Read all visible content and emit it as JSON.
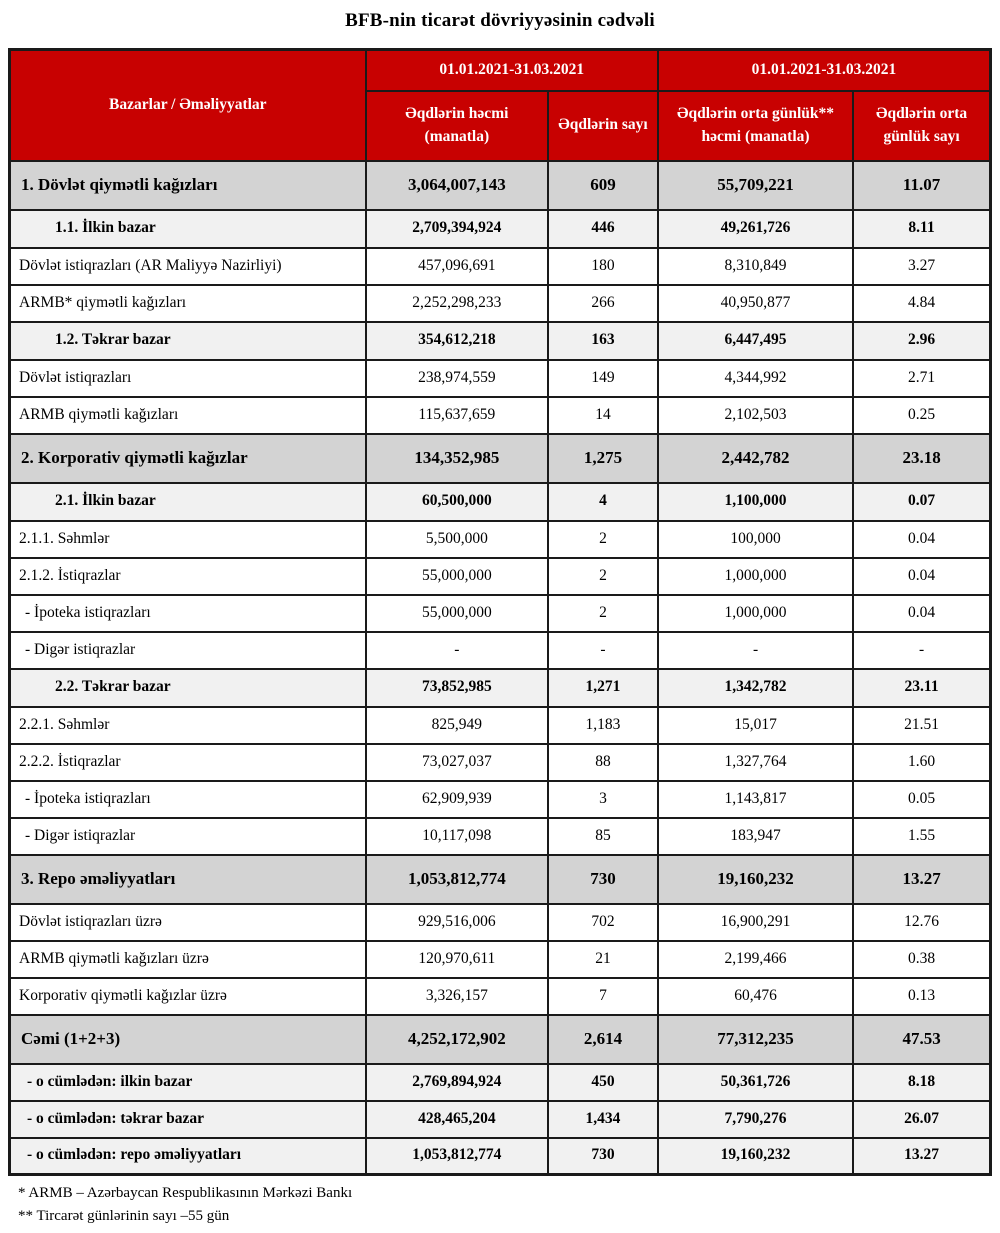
{
  "title": "BFB-nin ticarət dövriyyəsinin cədvəli",
  "colors": {
    "header_bg": "#C80101",
    "header_text": "#FFFFFF",
    "section_bg": "#D3D3D3",
    "subsection_bg": "#F1F1F1",
    "border": "#1A1A1A"
  },
  "table": {
    "corner_header": "Bazarlar / Əməliyyatlar",
    "period_headers": [
      "01.01.2021-31.03.2021",
      "01.01.2021-31.03.2021"
    ],
    "column_headers": [
      "Əqdlərin həcmi (manatla)",
      "Əqdlərin sayı",
      "Əqdlərin orta günlük** həcmi (manatla)",
      "Əqdlərin orta günlük sayı"
    ],
    "rows": [
      {
        "label": "1. Dövlət qiymətli kağızları",
        "values": [
          "3,064,007,143",
          "609",
          "55,709,221",
          "11.07"
        ],
        "style": "section"
      },
      {
        "label": "1.1. İlkin bazar",
        "values": [
          "2,709,394,924",
          "446",
          "49,261,726",
          "8.11"
        ],
        "style": "subsection"
      },
      {
        "label": "Dövlət istiqrazları (AR Maliyyə Nazirliyi)",
        "values": [
          "457,096,691",
          "180",
          "8,310,849",
          "3.27"
        ],
        "style": "detail"
      },
      {
        "label": "ARMB* qiymətli kağızları",
        "values": [
          "2,252,298,233",
          "266",
          "40,950,877",
          "4.84"
        ],
        "style": "detail"
      },
      {
        "label": "1.2. Təkrar bazar",
        "values": [
          "354,612,218",
          "163",
          "6,447,495",
          "2.96"
        ],
        "style": "subsection"
      },
      {
        "label": "Dövlət istiqrazları",
        "values": [
          "238,974,559",
          "149",
          "4,344,992",
          "2.71"
        ],
        "style": "detail"
      },
      {
        "label": "ARMB qiymətli kağızları",
        "values": [
          "115,637,659",
          "14",
          "2,102,503",
          "0.25"
        ],
        "style": "detail"
      },
      {
        "label": "2. Korporativ qiymətli kağızlar",
        "values": [
          "134,352,985",
          "1,275",
          "2,442,782",
          "23.18"
        ],
        "style": "section"
      },
      {
        "label": "2.1. İlkin bazar",
        "values": [
          "60,500,000",
          "4",
          "1,100,000",
          "0.07"
        ],
        "style": "subsection"
      },
      {
        "label": "2.1.1. Səhmlər",
        "values": [
          "5,500,000",
          "2",
          "100,000",
          "0.04"
        ],
        "style": "detail"
      },
      {
        "label": "2.1.2. İstiqrazlar",
        "values": [
          "55,000,000",
          "2",
          "1,000,000",
          "0.04"
        ],
        "style": "detail"
      },
      {
        "label": "- İpoteka istiqrazları",
        "values": [
          "55,000,000",
          "2",
          "1,000,000",
          "0.04"
        ],
        "style": "dash"
      },
      {
        "label": "- Digər istiqrazlar",
        "values": [
          "-",
          "-",
          "-",
          "-"
        ],
        "style": "dash"
      },
      {
        "label": "2.2. Təkrar bazar",
        "values": [
          "73,852,985",
          "1,271",
          "1,342,782",
          "23.11"
        ],
        "style": "subsection"
      },
      {
        "label": "2.2.1. Səhmlər",
        "values": [
          "825,949",
          "1,183",
          "15,017",
          "21.51"
        ],
        "style": "detail"
      },
      {
        "label": "2.2.2. İstiqrazlar",
        "values": [
          "73,027,037",
          "88",
          "1,327,764",
          "1.60"
        ],
        "style": "detail"
      },
      {
        "label": "- İpoteka istiqrazları",
        "values": [
          "62,909,939",
          "3",
          "1,143,817",
          "0.05"
        ],
        "style": "dash"
      },
      {
        "label": "- Digər istiqrazlar",
        "values": [
          "10,117,098",
          "85",
          "183,947",
          "1.55"
        ],
        "style": "dash"
      },
      {
        "label": "3. Repo əməliyyatları",
        "values": [
          "1,053,812,774",
          "730",
          "19,160,232",
          "13.27"
        ],
        "style": "section"
      },
      {
        "label": "Dövlət istiqrazları üzrə",
        "values": [
          "929,516,006",
          "702",
          "16,900,291",
          "12.76"
        ],
        "style": "detail"
      },
      {
        "label": "ARMB qiymətli kağızları üzrə",
        "values": [
          "120,970,611",
          "21",
          "2,199,466",
          "0.38"
        ],
        "style": "detail"
      },
      {
        "label": "Korporativ qiymətli kağızlar üzrə",
        "values": [
          "3,326,157",
          "7",
          "60,476",
          "0.13"
        ],
        "style": "detail"
      },
      {
        "label": "Cəmi (1+2+3)",
        "values": [
          "4,252,172,902",
          "2,614",
          "77,312,235",
          "47.53"
        ],
        "style": "section"
      },
      {
        "label": "- o cümlədən: ilkin bazar",
        "values": [
          "2,769,894,924",
          "450",
          "50,361,726",
          "8.18"
        ],
        "style": "subtotal"
      },
      {
        "label": "- o cümlədən: təkrar bazar",
        "values": [
          "428,465,204",
          "1,434",
          "7,790,276",
          "26.07"
        ],
        "style": "subtotal"
      },
      {
        "label": "- o cümlədən: repo əməliyyatları",
        "values": [
          "1,053,812,774",
          "730",
          "19,160,232",
          "13.27"
        ],
        "style": "subtotal"
      }
    ]
  },
  "footnotes": [
    "* ARMB – Azərbaycan Respublikasının Mərkəzi Bankı",
    "** Tircarət günlərinin sayı –55 gün"
  ]
}
